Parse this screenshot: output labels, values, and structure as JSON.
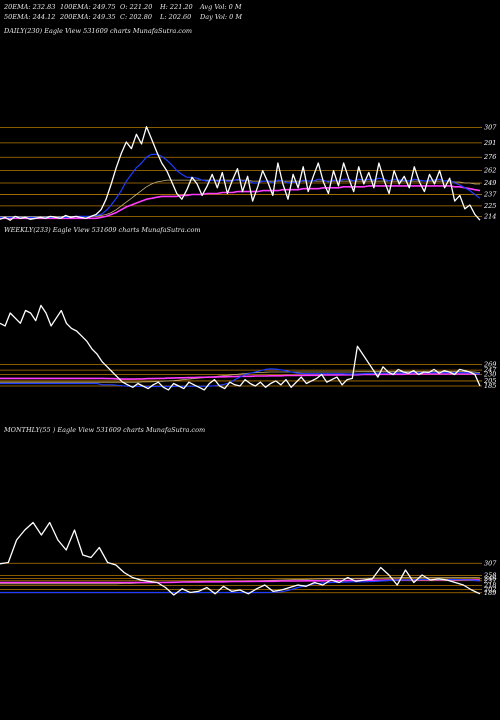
{
  "header": {
    "col1": [
      "20EMA: 232.83",
      "50EMA: 244.12"
    ],
    "col2": [
      "100EMA: 249.75",
      "200EMA: 249.35"
    ],
    "col3": [
      "O: 221.20",
      "C: 202.80"
    ],
    "col4": [
      "H: 221.20",
      "L: 202.60"
    ],
    "col5": [
      "Avg Vol: 0  M",
      "Day Vol: 0  M"
    ]
  },
  "colors": {
    "background": "#000000",
    "price": "#ffffff",
    "ema_fast": "#1e3cff",
    "ema_pink": "#ff3cff",
    "ema_slow": "#c8b478",
    "grid": "#b87800"
  },
  "chart_data": [
    {
      "type": "line",
      "label": "DAILY(230) Eagle  View  531609 charts MunafaSutra.com",
      "ylim": [
        205,
        315
      ],
      "levels": [
        307,
        291,
        276,
        262,
        249,
        237,
        225,
        214
      ],
      "series": [
        {
          "role": "price",
          "values": [
            211,
            213,
            210,
            214,
            212,
            213,
            211,
            212,
            213,
            212,
            214,
            213,
            212,
            215,
            213,
            214,
            213,
            212,
            214,
            216,
            221,
            232,
            248,
            265,
            280,
            292,
            285,
            300,
            290,
            308,
            295,
            282,
            270,
            262,
            250,
            238,
            232,
            242,
            255,
            248,
            236,
            246,
            258,
            244,
            260,
            238,
            252,
            264,
            240,
            256,
            230,
            245,
            262,
            250,
            236,
            270,
            248,
            232,
            258,
            244,
            266,
            240,
            256,
            270,
            250,
            238,
            262,
            246,
            270,
            254,
            240,
            266,
            248,
            260,
            244,
            270,
            252,
            238,
            262,
            248,
            256,
            244,
            266,
            250,
            240,
            258,
            248,
            262,
            244,
            254,
            230,
            236,
            222,
            226,
            216,
            210
          ]
        },
        {
          "role": "ema_fast",
          "values": [
            213,
            213,
            213,
            213,
            213,
            213,
            213,
            213,
            213,
            213,
            213,
            213,
            213,
            213,
            213,
            214,
            214,
            214,
            214,
            215,
            216,
            220,
            226,
            233,
            241,
            251,
            258,
            265,
            270,
            276,
            279,
            279,
            277,
            273,
            268,
            262,
            258,
            255,
            255,
            254,
            252,
            251,
            252,
            251,
            252,
            251,
            251,
            253,
            251,
            252,
            249,
            249,
            251,
            251,
            249,
            252,
            251,
            249,
            250,
            249,
            252,
            251,
            251,
            253,
            252,
            250,
            252,
            251,
            253,
            253,
            251,
            253,
            252,
            253,
            252,
            254,
            253,
            251,
            253,
            252,
            252,
            251,
            253,
            252,
            251,
            252,
            252,
            253,
            251,
            252,
            249,
            247,
            244,
            241,
            237,
            233
          ]
        },
        {
          "role": "ema_pink",
          "values": [
            212,
            212,
            212,
            212,
            212,
            212,
            212,
            212,
            212,
            212,
            212,
            212,
            212,
            212,
            212,
            212,
            212,
            212,
            212,
            212,
            213,
            214,
            216,
            218,
            221,
            224,
            226,
            228,
            230,
            232,
            233,
            234,
            235,
            235,
            235,
            235,
            236,
            236,
            237,
            237,
            237,
            238,
            238,
            238,
            239,
            239,
            239,
            240,
            240,
            240,
            240,
            240,
            241,
            241,
            241,
            241,
            242,
            242,
            242,
            242,
            243,
            243,
            243,
            243,
            244,
            244,
            244,
            244,
            245,
            245,
            245,
            245,
            245,
            246,
            246,
            246,
            246,
            246,
            246,
            246,
            246,
            246,
            246,
            246,
            246,
            246,
            246,
            246,
            246,
            246,
            245,
            245,
            244,
            243,
            242,
            241
          ]
        },
        {
          "role": "ema_slow",
          "values": [
            214,
            214,
            214,
            214,
            214,
            214,
            214,
            214,
            214,
            214,
            214,
            214,
            214,
            214,
            214,
            214,
            214,
            214,
            214,
            214,
            215,
            216,
            218,
            221,
            225,
            229,
            233,
            237,
            241,
            245,
            248,
            250,
            251,
            252,
            252,
            252,
            252,
            252,
            252,
            252,
            252,
            252,
            252,
            252,
            252,
            252,
            252,
            252,
            252,
            252,
            251,
            251,
            251,
            251,
            251,
            251,
            251,
            251,
            251,
            251,
            251,
            251,
            251,
            251,
            251,
            251,
            251,
            251,
            251,
            251,
            251,
            251,
            251,
            251,
            251,
            251,
            251,
            251,
            251,
            251,
            251,
            251,
            251,
            251,
            251,
            251,
            251,
            251,
            251,
            251,
            250,
            250,
            249,
            249,
            248,
            248
          ]
        }
      ]
    },
    {
      "type": "line",
      "label": "WEEKLY(233) Eagle  View  531609 charts MunafaSutra.com",
      "ylim": [
        150,
        560
      ],
      "levels": [
        269,
        247,
        230,
        205,
        185
      ],
      "series": [
        {
          "role": "price",
          "values": [
            430,
            420,
            470,
            450,
            430,
            480,
            470,
            440,
            500,
            470,
            420,
            450,
            480,
            430,
            410,
            400,
            380,
            360,
            330,
            310,
            280,
            260,
            240,
            220,
            200,
            190,
            180,
            195,
            185,
            175,
            190,
            200,
            180,
            170,
            195,
            185,
            175,
            200,
            190,
            180,
            170,
            195,
            210,
            185,
            175,
            200,
            190,
            185,
            210,
            195,
            185,
            200,
            180,
            195,
            205,
            190,
            210,
            180,
            200,
            220,
            195,
            205,
            215,
            230,
            200,
            210,
            220,
            190,
            210,
            215,
            340,
            310,
            280,
            250,
            220,
            260,
            240,
            230,
            250,
            240,
            235,
            245,
            230,
            240,
            238,
            250,
            235,
            245,
            240,
            230,
            250,
            245,
            240,
            230,
            185
          ]
        },
        {
          "role": "ema_fast",
          "values": [
            195,
            195,
            195,
            195,
            195,
            195,
            195,
            195,
            195,
            195,
            195,
            195,
            195,
            195,
            195,
            195,
            195,
            195,
            195,
            195,
            190,
            190,
            190,
            188,
            186,
            185,
            184,
            184,
            183,
            183,
            183,
            183,
            183,
            183,
            183,
            184,
            184,
            184,
            184,
            184,
            184,
            185,
            186,
            188,
            192,
            198,
            210,
            220,
            230,
            235,
            240,
            245,
            250,
            252,
            251,
            248,
            245,
            240,
            236,
            234,
            233,
            233,
            233,
            233,
            233,
            233,
            233,
            233,
            232,
            232,
            232,
            233,
            234,
            234,
            235,
            235,
            235,
            236,
            236,
            236,
            236,
            237,
            237,
            237,
            237,
            237,
            237,
            237,
            237,
            237,
            237,
            237,
            236,
            235,
            232
          ]
        },
        {
          "role": "ema_pink",
          "values": [
            215,
            215,
            215,
            215,
            215,
            215,
            215,
            215,
            215,
            215,
            215,
            215,
            215,
            215,
            215,
            215,
            215,
            215,
            215,
            215,
            215,
            214,
            214,
            213,
            212,
            212,
            212,
            213,
            213,
            214,
            214,
            215,
            215,
            216,
            216,
            217,
            217,
            218,
            218,
            219,
            219,
            220,
            220,
            221,
            221,
            222,
            222,
            223,
            223,
            223,
            224,
            224,
            224,
            225,
            225,
            225,
            226,
            226,
            226,
            226,
            227,
            227,
            227,
            228,
            228,
            228,
            228,
            229,
            229,
            229,
            229,
            230,
            230,
            230,
            230,
            231,
            231,
            231,
            231,
            231,
            232,
            232,
            232,
            232,
            232,
            232,
            232,
            232,
            232,
            232,
            232,
            232,
            232,
            232,
            232
          ]
        },
        {
          "role": "ema_slow",
          "values": [
            200,
            200,
            200,
            200,
            200,
            200,
            200,
            200,
            200,
            200,
            200,
            200,
            200,
            200,
            200,
            200,
            200,
            200,
            200,
            200,
            200,
            200,
            200,
            200,
            200,
            200,
            200,
            200,
            201,
            201,
            202,
            203,
            204,
            205,
            206,
            208,
            210,
            212,
            214,
            216,
            218,
            220,
            222,
            224,
            226,
            228,
            230,
            232,
            234,
            236,
            237,
            238,
            239,
            240,
            240,
            240,
            240,
            240,
            240,
            240,
            240,
            240,
            240,
            240,
            240,
            240,
            240,
            240,
            240,
            240,
            241,
            241,
            241,
            241,
            241,
            241,
            241,
            241,
            241,
            241,
            241,
            241,
            241,
            241,
            241,
            241,
            241,
            241,
            241,
            241,
            241,
            241,
            241,
            240,
            238
          ]
        }
      ]
    },
    {
      "type": "line",
      "label": "MONTHLY(55                    ) Eagle  View  531609 charts MunafaSutra.com",
      "ylim": [
        140,
        560
      ],
      "levels": [
        307,
        258,
        246,
        237,
        218,
        202,
        189
      ],
      "series": [
        {
          "role": "price",
          "values": [
            305,
            310,
            400,
            440,
            470,
            420,
            470,
            400,
            360,
            440,
            340,
            330,
            370,
            310,
            300,
            270,
            250,
            240,
            235,
            230,
            210,
            180,
            205,
            190,
            195,
            210,
            185,
            215,
            195,
            200,
            185,
            205,
            220,
            195,
            200,
            210,
            220,
            215,
            230,
            220,
            240,
            230,
            250,
            235,
            240,
            245,
            290,
            260,
            220,
            280,
            230,
            260,
            240,
            245,
            240,
            230,
            220,
            200,
            185
          ]
        },
        {
          "role": "ema_fast",
          "values": [
            190,
            190,
            190,
            190,
            190,
            190,
            190,
            190,
            190,
            190,
            190,
            190,
            190,
            190,
            190,
            190,
            190,
            190,
            190,
            190,
            190,
            190,
            190,
            190,
            190,
            190,
            190,
            190,
            190,
            190,
            190,
            190,
            190,
            191,
            193,
            200,
            210,
            218,
            225,
            228,
            230,
            231,
            232,
            233,
            233,
            234,
            236,
            238,
            240,
            240,
            241,
            242,
            242,
            242,
            242,
            242,
            241,
            240,
            236
          ]
        },
        {
          "role": "ema_pink",
          "values": [
            230,
            230,
            230,
            230,
            230,
            230,
            230,
            230,
            230,
            230,
            230,
            230,
            230,
            230,
            230,
            230,
            230,
            230,
            230,
            230,
            230,
            231,
            232,
            232,
            232,
            233,
            233,
            233,
            234,
            234,
            234,
            235,
            235,
            235,
            236,
            236,
            236,
            237,
            237,
            237,
            238,
            238,
            238,
            238,
            239,
            239,
            239,
            240,
            240,
            240,
            240,
            241,
            241,
            241,
            241,
            241,
            241,
            241,
            240
          ]
        },
        {
          "role": "ema_slow",
          "values": [
            225,
            225,
            225,
            225,
            225,
            225,
            225,
            225,
            225,
            225,
            225,
            225,
            225,
            225,
            225,
            226,
            227,
            228,
            229,
            230,
            231,
            232,
            233,
            234,
            235,
            236,
            236,
            236,
            236,
            236,
            237,
            237,
            238,
            239,
            240,
            241,
            242,
            243,
            244,
            245,
            245,
            246,
            246,
            247,
            247,
            248,
            248,
            249,
            249,
            250,
            250,
            250,
            250,
            250,
            250,
            250,
            250,
            250,
            249
          ]
        }
      ]
    }
  ]
}
